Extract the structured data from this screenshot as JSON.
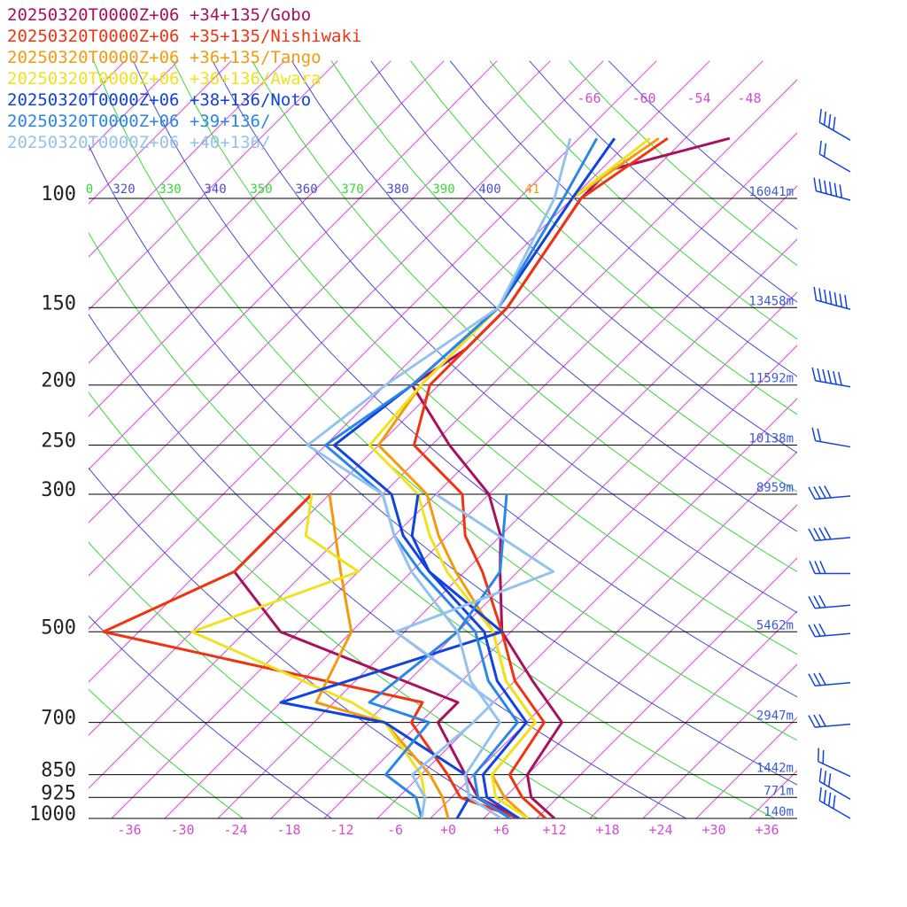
{
  "legend": [
    {
      "text": "20250320T0000Z+06 +34+135/Gobo",
      "color": "#a8115e"
    },
    {
      "text": "20250320T0000Z+06 +35+135/Nishiwaki",
      "color": "#f03410"
    },
    {
      "text": "20250320T0000Z+06 +36+135/Tango",
      "color": "#f59a0c"
    },
    {
      "text": "20250320T0000Z+06 +36+136/Awara",
      "color": "#f0e21e"
    },
    {
      "text": "20250320T0000Z+06 +38+136/Noto",
      "color": "#1043e0"
    },
    {
      "text": "20250320T0000Z+06 +39+136/",
      "color": "#2b86e8"
    },
    {
      "text": "20250320T0000Z+06 +40+136/",
      "color": "#94c2ee"
    }
  ],
  "chart_data": {
    "type": "skew-t",
    "pressure_levels": [
      {
        "label": "100",
        "p": 100,
        "height": "16041m"
      },
      {
        "label": "150",
        "p": 150,
        "height": "13458m"
      },
      {
        "label": "200",
        "p": 200,
        "height": "11592m"
      },
      {
        "label": "250",
        "p": 250,
        "height": "10138m"
      },
      {
        "label": "300",
        "p": 300,
        "height": "8959m"
      },
      {
        "label": "500",
        "p": 500,
        "height": "5462m"
      },
      {
        "label": "700",
        "p": 700,
        "height": "2947m"
      },
      {
        "label": "850",
        "p": 850,
        "height": "1442m"
      },
      {
        "label": "925",
        "p": 925,
        "height": "771m"
      },
      {
        "label": "1000",
        "p": 1000,
        "height": "140m"
      }
    ],
    "temperature_ticks": [
      "-36",
      "-30",
      "-24",
      "-18",
      "-12",
      "-6",
      "+0",
      "+6",
      "+12",
      "+18",
      "+24",
      "+30",
      "+36"
    ],
    "upper_temperature_labels": [
      "-66",
      "-60",
      "-54",
      "-48"
    ],
    "theta_labels": [
      {
        "text": "0",
        "color": "#36d936"
      },
      {
        "text": "320",
        "color": "#4b4bd2"
      },
      {
        "text": "330",
        "color": "#36d936"
      },
      {
        "text": "340",
        "color": "#4b4bd2"
      },
      {
        "text": "350",
        "color": "#36d936"
      },
      {
        "text": "360",
        "color": "#4b4bd2"
      },
      {
        "text": "370",
        "color": "#36d936"
      },
      {
        "text": "380",
        "color": "#4b4bd2"
      },
      {
        "text": "390",
        "color": "#36d936"
      },
      {
        "text": "400",
        "color": "#4b4bd2"
      },
      {
        "text": "41",
        "color": "#f59a0c"
      }
    ],
    "series": [
      {
        "name": "20250320T0000Z+06 +34+135/Gobo",
        "temperature": [
          [
            80,
            -45
          ],
          [
            90,
            -55
          ],
          [
            100,
            -55
          ],
          [
            150,
            -51
          ],
          [
            175,
            -51
          ],
          [
            200,
            -53
          ],
          [
            250,
            -42
          ],
          [
            300,
            -32
          ],
          [
            350,
            -26
          ],
          [
            400,
            -22
          ],
          [
            500,
            -15
          ],
          [
            600,
            -6
          ],
          [
            700,
            2
          ],
          [
            850,
            4
          ],
          [
            925,
            7
          ],
          [
            1000,
            12
          ]
        ],
        "dewpoint": [
          [
            300,
            -52
          ],
          [
            400,
            -52
          ],
          [
            500,
            -40
          ],
          [
            650,
            -12
          ],
          [
            700,
            -12
          ],
          [
            850,
            -3
          ],
          [
            925,
            1
          ],
          [
            1000,
            8
          ]
        ]
      },
      {
        "name": "20250320T0000Z+06 +35+135/Nishiwaki",
        "temperature": [
          [
            80,
            -52
          ],
          [
            100,
            -55
          ],
          [
            150,
            -51
          ],
          [
            200,
            -51
          ],
          [
            250,
            -46
          ],
          [
            300,
            -35
          ],
          [
            350,
            -30
          ],
          [
            400,
            -24
          ],
          [
            500,
            -15
          ],
          [
            600,
            -8
          ],
          [
            700,
            0
          ],
          [
            850,
            2
          ],
          [
            925,
            6
          ],
          [
            1000,
            11
          ]
        ],
        "dewpoint": [
          [
            300,
            -52
          ],
          [
            400,
            -52
          ],
          [
            500,
            -60
          ],
          [
            650,
            -16
          ],
          [
            700,
            -15
          ],
          [
            850,
            -5
          ],
          [
            925,
            -1
          ],
          [
            1000,
            8
          ]
        ]
      },
      {
        "name": "20250320T0000Z+06 +36+135/Tango",
        "temperature": [
          [
            80,
            -53
          ],
          [
            100,
            -56
          ],
          [
            150,
            -52
          ],
          [
            200,
            -52
          ],
          [
            250,
            -50
          ],
          [
            300,
            -39
          ],
          [
            350,
            -33
          ],
          [
            400,
            -27
          ],
          [
            500,
            -16
          ],
          [
            600,
            -9
          ],
          [
            700,
            -1
          ],
          [
            850,
            0
          ],
          [
            925,
            4
          ],
          [
            1000,
            9
          ]
        ],
        "dewpoint": [
          [
            300,
            -50
          ],
          [
            400,
            -40
          ],
          [
            500,
            -32
          ],
          [
            650,
            -28
          ],
          [
            700,
            -18
          ],
          [
            850,
            -7
          ],
          [
            925,
            -3
          ],
          [
            1000,
            0
          ]
        ]
      },
      {
        "name": "20250320T0000Z+06 +36+136/Awara",
        "temperature": [
          [
            80,
            -54
          ],
          [
            100,
            -56
          ],
          [
            150,
            -52
          ],
          [
            200,
            -52
          ],
          [
            250,
            -51
          ],
          [
            300,
            -40
          ],
          [
            350,
            -34
          ],
          [
            400,
            -28
          ],
          [
            500,
            -16
          ],
          [
            600,
            -9
          ],
          [
            700,
            -1
          ],
          [
            850,
            0
          ],
          [
            925,
            3
          ],
          [
            1000,
            9
          ]
        ],
        "dewpoint": [
          [
            300,
            -52
          ],
          [
            350,
            -48
          ],
          [
            400,
            -38
          ],
          [
            500,
            -50
          ],
          [
            650,
            -24
          ],
          [
            700,
            -18
          ],
          [
            850,
            -8
          ],
          [
            925,
            -5
          ],
          [
            1000,
            -3
          ]
        ]
      },
      {
        "name": "20250320T0000Z+06 +38+136/Noto",
        "temperature": [
          [
            80,
            -58
          ],
          [
            100,
            -56
          ],
          [
            150,
            -52
          ],
          [
            200,
            -53
          ],
          [
            250,
            -55
          ],
          [
            300,
            -43
          ],
          [
            350,
            -37
          ],
          [
            400,
            -30
          ],
          [
            500,
            -17
          ],
          [
            600,
            -10
          ],
          [
            700,
            -2
          ],
          [
            850,
            -1
          ],
          [
            925,
            2
          ],
          [
            1000,
            8
          ]
        ],
        "dewpoint": [
          [
            300,
            -40
          ],
          [
            350,
            -36
          ],
          [
            400,
            -30
          ],
          [
            500,
            -15
          ],
          [
            650,
            -32
          ],
          [
            700,
            -18
          ],
          [
            850,
            -3
          ],
          [
            925,
            0
          ],
          [
            1000,
            1
          ]
        ]
      },
      {
        "name": "20250320T0000Z+06 +39+136/",
        "temperature": [
          [
            80,
            -60
          ],
          [
            100,
            -57
          ],
          [
            150,
            -52
          ],
          [
            200,
            -53
          ],
          [
            250,
            -56
          ],
          [
            300,
            -44
          ],
          [
            350,
            -38
          ],
          [
            400,
            -31
          ],
          [
            500,
            -18
          ],
          [
            600,
            -11
          ],
          [
            700,
            -3
          ],
          [
            850,
            -2
          ],
          [
            925,
            1
          ],
          [
            1000,
            7
          ]
        ],
        "dewpoint": [
          [
            300,
            -30
          ],
          [
            400,
            -22
          ],
          [
            500,
            -20
          ],
          [
            650,
            -22
          ],
          [
            700,
            -13
          ],
          [
            850,
            -12
          ],
          [
            925,
            -6
          ],
          [
            1000,
            -3
          ]
        ]
      },
      {
        "name": "20250320T0000Z+06 +40+136/",
        "temperature": [
          [
            80,
            -63
          ],
          [
            100,
            -58
          ],
          [
            150,
            -52
          ],
          [
            200,
            -56
          ],
          [
            250,
            -58
          ],
          [
            300,
            -44
          ],
          [
            350,
            -38
          ],
          [
            400,
            -32
          ],
          [
            500,
            -20
          ],
          [
            600,
            -13
          ],
          [
            700,
            -5
          ],
          [
            850,
            -3
          ],
          [
            925,
            0
          ],
          [
            1000,
            6
          ]
        ],
        "dewpoint": [
          [
            300,
            -38
          ],
          [
            400,
            -16
          ],
          [
            500,
            -27
          ],
          [
            650,
            -8
          ],
          [
            700,
            -8
          ],
          [
            850,
            -9
          ],
          [
            925,
            -5
          ],
          [
            1000,
            -3
          ]
        ]
      }
    ],
    "wind_barbs": [
      {
        "p": 80,
        "knots": 40,
        "dir": 240
      },
      {
        "p": 90,
        "knots": 20,
        "dir": 240
      },
      {
        "p": 100,
        "knots": 60,
        "dir": 255
      },
      {
        "p": 150,
        "knots": 70,
        "dir": 255
      },
      {
        "p": 200,
        "knots": 60,
        "dir": 260
      },
      {
        "p": 250,
        "knots": 20,
        "dir": 260
      },
      {
        "p": 300,
        "knots": 40,
        "dir": 275
      },
      {
        "p": 350,
        "knots": 40,
        "dir": 275
      },
      {
        "p": 400,
        "knots": 30,
        "dir": 270
      },
      {
        "p": 450,
        "knots": 30,
        "dir": 275
      },
      {
        "p": 500,
        "knots": 30,
        "dir": 275
      },
      {
        "p": 600,
        "knots": 30,
        "dir": 275
      },
      {
        "p": 700,
        "knots": 30,
        "dir": 275
      },
      {
        "p": 850,
        "knots": 20,
        "dir": 245
      },
      {
        "p": 925,
        "knots": 30,
        "dir": 240
      },
      {
        "p": 1000,
        "knots": 40,
        "dir": 240
      }
    ]
  }
}
